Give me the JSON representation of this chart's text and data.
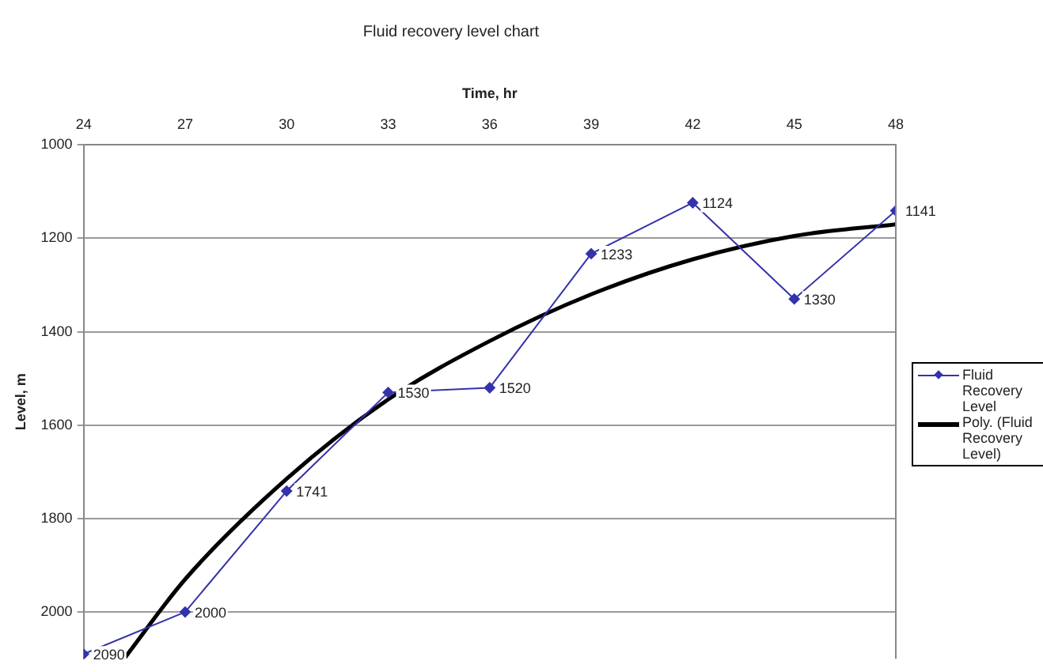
{
  "chart_data": {
    "type": "line",
    "title": "Fluid recovery level chart",
    "xlabel": "Time, hr",
    "ylabel": "Level, m",
    "xlim": [
      24,
      48
    ],
    "xticks": [
      24,
      27,
      30,
      33,
      36,
      39,
      42,
      45,
      48
    ],
    "ylim": [
      2100,
      1000
    ],
    "yticks": [
      1000,
      1200,
      1400,
      1600,
      1800,
      2000
    ],
    "grid": "y",
    "legend": "right",
    "marker": "diamond",
    "line_style": "solid",
    "series": [
      {
        "name": "Fluid Recovery Level",
        "color": "#3333aa",
        "x": [
          24,
          27,
          30,
          33,
          36,
          39,
          42,
          45,
          48
        ],
        "values": [
          2090,
          2000,
          1741,
          1530,
          1520,
          1233,
          1124,
          1330,
          1141
        ],
        "value_labels": [
          "2090",
          "2000",
          "1741",
          "1530",
          "1520",
          "1233",
          "1124",
          "1330",
          "1141"
        ]
      },
      {
        "name": "Poly. (Fluid Recovery Level)",
        "color": "#000000",
        "marker": "none",
        "x": [
          25.2,
          27,
          30,
          33,
          36,
          39,
          42,
          45,
          48
        ],
        "values": [
          2100,
          1930,
          1715,
          1545,
          1420,
          1320,
          1245,
          1195,
          1170
        ]
      }
    ]
  }
}
